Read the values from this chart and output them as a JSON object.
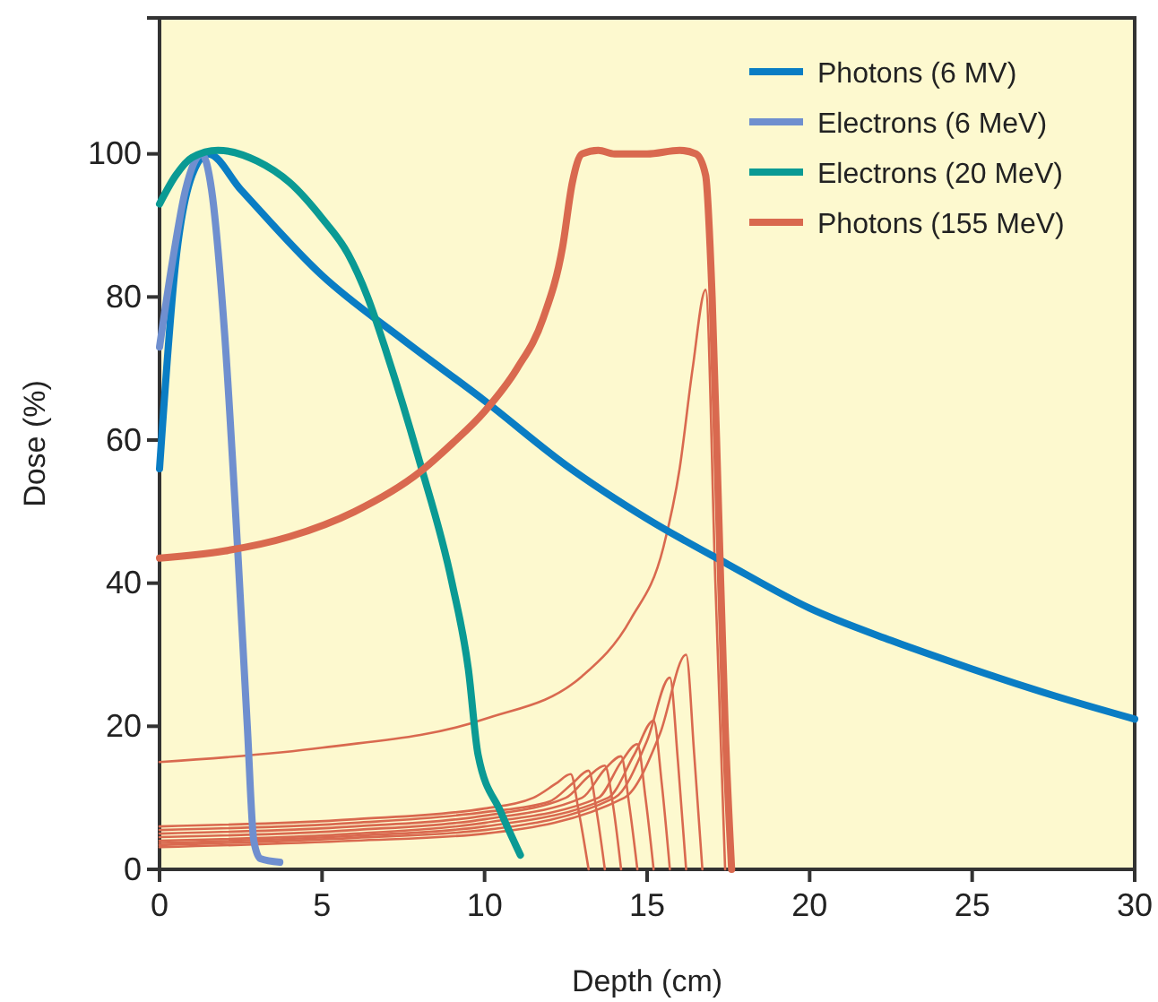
{
  "chart_data": {
    "type": "line",
    "xlabel": "Depth (cm)",
    "ylabel": "Dose (%)",
    "xlim": [
      0,
      30
    ],
    "ylim": [
      0,
      119
    ],
    "xticks": [
      0,
      5,
      10,
      15,
      20,
      25,
      30
    ],
    "yticks": [
      0,
      20,
      40,
      60,
      80,
      100
    ],
    "legend": "top right",
    "grid": false,
    "marker": "none",
    "line_style": "solid",
    "series": [
      {
        "name": "Photons (6 MV)",
        "color": "#0a7dc4",
        "x": [
          0,
          0.5,
          1,
          1.5,
          2.5,
          5,
          7.5,
          10,
          12.5,
          15,
          17.5,
          20,
          22.5,
          25,
          27.5,
          30
        ],
        "values": [
          56,
          85,
          97,
          100,
          95,
          83,
          74,
          65.5,
          56.5,
          49,
          42.6,
          36.5,
          32,
          28,
          24.3,
          21
        ]
      },
      {
        "name": "Electrons (6 MeV)",
        "color": "#6f8fcf",
        "x": [
          0,
          0.4,
          0.8,
          1.3,
          1.6,
          2,
          2.4,
          2.7,
          2.9,
          3.1,
          3.7
        ],
        "values": [
          73,
          85,
          95,
          100,
          95,
          75,
          45,
          20,
          4,
          1.5,
          1
        ]
      },
      {
        "name": "Electrons (20 MeV)",
        "color": "#0a9a94",
        "x": [
          0,
          0.5,
          1,
          1.8,
          3,
          4,
          5,
          5.8,
          6.4,
          7,
          8,
          9,
          9.5,
          9.8,
          10.5,
          11.1
        ],
        "values": [
          93,
          97,
          99.5,
          100.5,
          99,
          96,
          91,
          86,
          80,
          72,
          57,
          40,
          28,
          16,
          8,
          2
        ]
      },
      {
        "name": "Photons (155 MeV)",
        "color": "#d9694f",
        "x": [
          0,
          2,
          4,
          6,
          8,
          9,
          10,
          11,
          11.8,
          12.4,
          12.7,
          13,
          13.5,
          14,
          15,
          16,
          16.5,
          16.8,
          17,
          17.2,
          17.4,
          17.6
        ],
        "values": [
          43.5,
          44.5,
          46.5,
          50,
          55.5,
          59.5,
          64,
          70,
          77,
          87,
          96,
          100,
          100.5,
          100,
          100,
          100.5,
          100,
          97,
          80,
          50,
          20,
          0
        ]
      },
      {
        "color": "#d9694f",
        "x": [
          0,
          5,
          10,
          13,
          14.5,
          15.5,
          16,
          16.4,
          16.8,
          17.1,
          17.4
        ],
        "values": [
          15,
          17,
          21,
          27,
          35,
          45,
          56,
          70,
          81,
          40,
          0
        ]
      },
      {
        "color": "#d9694f",
        "x": [
          0,
          6,
          10,
          11.5,
          12.2,
          12.65,
          12.9,
          13.2
        ],
        "values": [
          6,
          7,
          8.5,
          10,
          12,
          13.3,
          8,
          0
        ]
      },
      {
        "color": "#d9694f",
        "x": [
          0,
          6,
          10,
          12,
          12.7,
          13.2,
          13.45,
          13.7
        ],
        "values": [
          5.5,
          6.5,
          8,
          9.5,
          12,
          13.8,
          8,
          0
        ]
      },
      {
        "color": "#d9694f",
        "x": [
          0,
          6,
          10,
          12.5,
          13.2,
          13.7,
          13.95,
          14.2
        ],
        "values": [
          5,
          6,
          7.5,
          10,
          13,
          14.5,
          9,
          0
        ]
      },
      {
        "color": "#d9694f",
        "x": [
          0,
          6,
          10,
          13,
          13.7,
          14.2,
          14.45,
          14.7
        ],
        "values": [
          4.5,
          5.5,
          7,
          10,
          14,
          15.8,
          9,
          0
        ]
      },
      {
        "color": "#d9694f",
        "x": [
          0,
          6,
          10,
          13.5,
          14.2,
          14.7,
          14.95,
          15.2
        ],
        "values": [
          4,
          5,
          6.5,
          10,
          15,
          17.5,
          10,
          0
        ]
      },
      {
        "color": "#d9694f",
        "x": [
          0,
          6,
          10,
          13.8,
          14.6,
          15.2,
          15.45,
          15.7
        ],
        "values": [
          3.7,
          4.7,
          6,
          10,
          16,
          20.8,
          12,
          0
        ]
      },
      {
        "color": "#d9694f",
        "x": [
          0,
          6,
          10,
          14,
          15,
          15.7,
          15.95,
          16.2
        ],
        "values": [
          3.4,
          4.4,
          5.5,
          10,
          18,
          26.8,
          15,
          0
        ]
      },
      {
        "color": "#d9694f",
        "x": [
          0,
          6,
          10,
          14.3,
          15.4,
          16.2,
          16.45,
          16.7
        ],
        "values": [
          3.1,
          4,
          5,
          10,
          19,
          30,
          16,
          0
        ]
      }
    ]
  }
}
